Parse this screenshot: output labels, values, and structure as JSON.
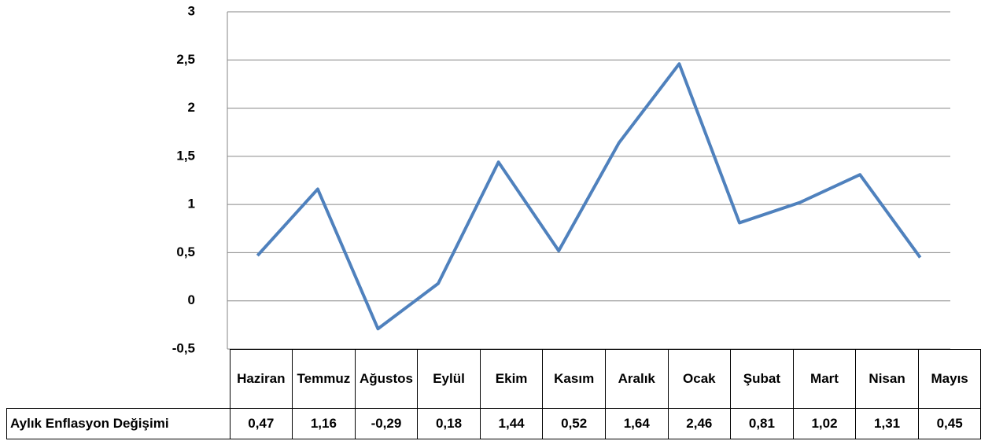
{
  "chart_data": {
    "type": "line",
    "categories": [
      "Haziran",
      "Temmuz",
      "Ağustos",
      "Eylül",
      "Ekim",
      "Kasım",
      "Aralık",
      "Ocak",
      "Şubat",
      "Mart",
      "Nisan",
      "Mayıs"
    ],
    "series": [
      {
        "name": "Aylık Enflasyon Değişimi",
        "color": "#4f81bd",
        "values": [
          0.47,
          1.16,
          -0.29,
          0.18,
          1.44,
          0.52,
          1.64,
          2.46,
          0.81,
          1.02,
          1.31,
          0.45
        ],
        "value_labels": [
          "0,47",
          "1,16",
          "-0,29",
          "0,18",
          "1,44",
          "0,52",
          "1,64",
          "2,46",
          "0,81",
          "1,02",
          "1,31",
          "0,45"
        ]
      }
    ],
    "ylim": [
      -0.5,
      3
    ],
    "yticks": [
      {
        "value": -0.5,
        "label": "-0,5"
      },
      0,
      {
        "value": 0.5,
        "label": "0,5"
      },
      1,
      {
        "value": 1.5,
        "label": "1,5"
      },
      2,
      {
        "value": 2.5,
        "label": "2,5"
      },
      3
    ],
    "grid": true
  }
}
